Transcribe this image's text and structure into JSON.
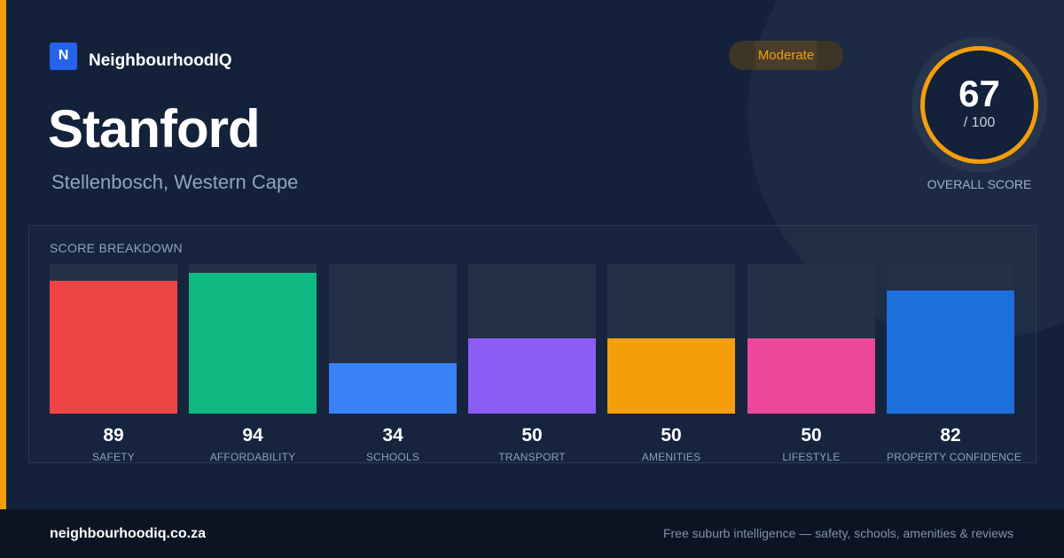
{
  "brand": {
    "logo_letter": "N",
    "name": "NeighbourhoodIQ"
  },
  "suburb": {
    "name": "Stanford",
    "location": "Stellenbosch, Western Cape"
  },
  "rating_badge": "Moderate",
  "overall": {
    "score": "67",
    "out_of": "/ 100",
    "label": "OVERALL SCORE"
  },
  "breakdown_title": "SCORE BREAKDOWN",
  "chart_data": {
    "type": "bar",
    "categories": [
      "SAFETY",
      "AFFORDABILITY",
      "SCHOOLS",
      "TRANSPORT",
      "AMENITIES",
      "LIFESTYLE",
      "PROPERTY CONFIDENCE"
    ],
    "values": [
      89,
      94,
      34,
      50,
      50,
      50,
      82
    ],
    "colors": [
      "#ef4444",
      "#10b981",
      "#3b82f6",
      "#8b5cf6",
      "#f59e0b",
      "#ec4899",
      "#1d6fdc"
    ],
    "ylim": [
      0,
      100
    ]
  },
  "footer": {
    "url": "neighbourhoodiq.co.za",
    "tagline": "Free suburb intelligence — safety, schools, amenities & reviews"
  },
  "colors": {
    "accent": "#f59e0b",
    "background": "#13213b",
    "brand": "#2563eb"
  }
}
